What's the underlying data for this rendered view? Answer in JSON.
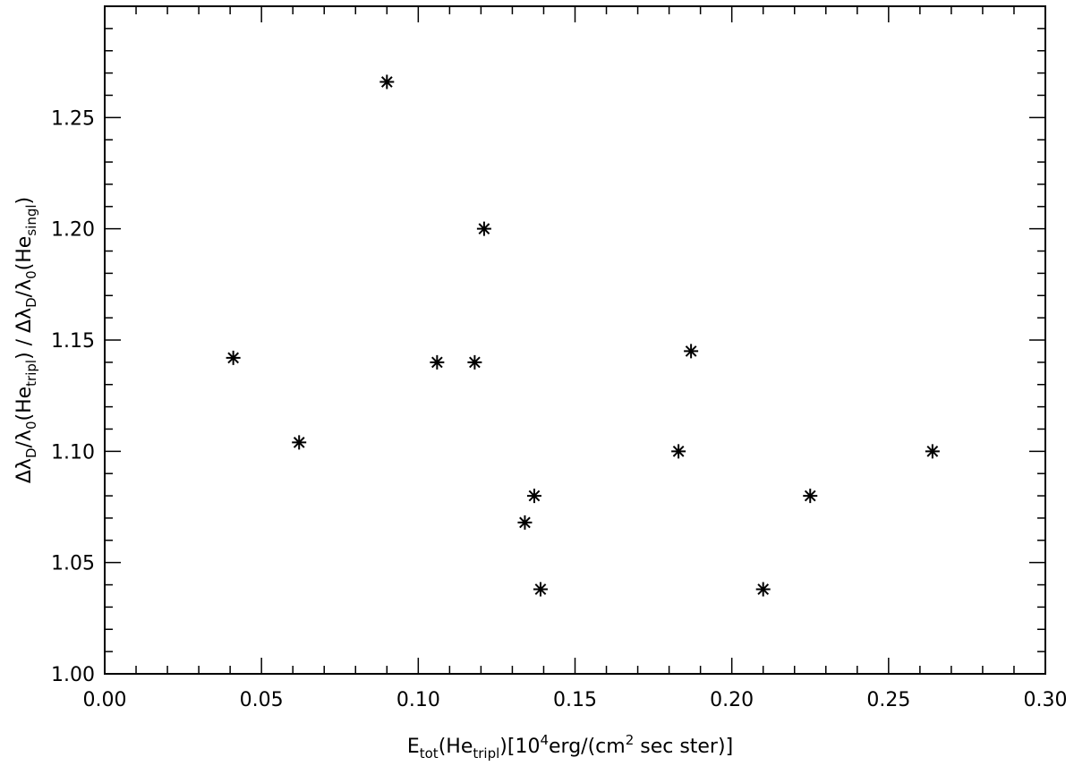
{
  "chart_data": {
    "type": "scatter",
    "title": "",
    "xlabel": {
      "parts": [
        "E",
        "tot",
        "(He",
        "tripl",
        ")[10",
        "4",
        "erg/(cm",
        "2",
        " sec ster)]"
      ]
    },
    "ylabel": {
      "parts": [
        "Δλ",
        "D",
        "/λ",
        "0",
        "(He",
        "tripl",
        ") / Δλ",
        "D",
        "/λ",
        "0",
        "(He",
        "singl",
        ")"
      ]
    },
    "xlim": [
      0.0,
      0.3
    ],
    "ylim": [
      1.0,
      1.3
    ],
    "x_ticks": [
      "0.00",
      "0.05",
      "0.10",
      "0.15",
      "0.20",
      "0.25",
      "0.30"
    ],
    "y_ticks": [
      "1.00",
      "1.05",
      "1.10",
      "1.15",
      "1.20",
      "1.25"
    ],
    "marker": "asterisk",
    "grid": false,
    "points": [
      {
        "x": 0.041,
        "y": 1.142
      },
      {
        "x": 0.062,
        "y": 1.104
      },
      {
        "x": 0.09,
        "y": 1.266
      },
      {
        "x": 0.106,
        "y": 1.14
      },
      {
        "x": 0.118,
        "y": 1.14
      },
      {
        "x": 0.121,
        "y": 1.2
      },
      {
        "x": 0.134,
        "y": 1.068
      },
      {
        "x": 0.137,
        "y": 1.08
      },
      {
        "x": 0.139,
        "y": 1.038
      },
      {
        "x": 0.183,
        "y": 1.1
      },
      {
        "x": 0.187,
        "y": 1.145
      },
      {
        "x": 0.21,
        "y": 1.038
      },
      {
        "x": 0.225,
        "y": 1.08
      },
      {
        "x": 0.264,
        "y": 1.1
      }
    ]
  }
}
